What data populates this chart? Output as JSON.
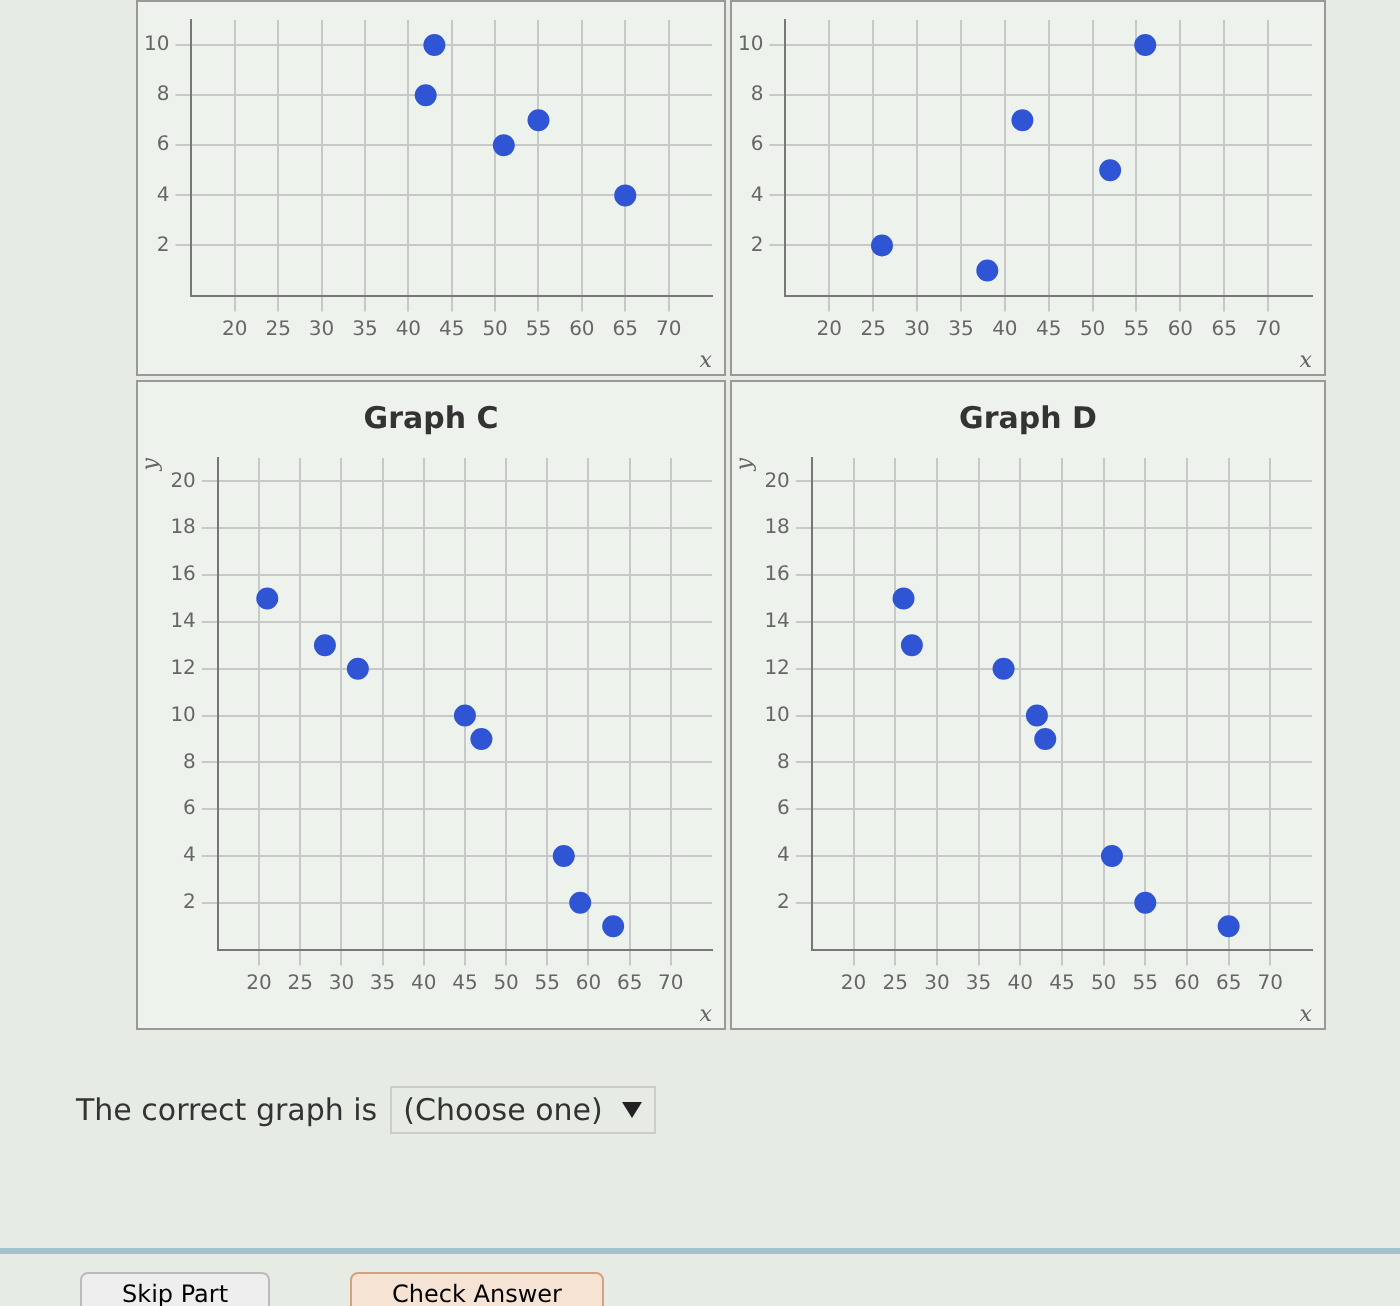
{
  "chart_data": [
    {
      "type": "scatter",
      "xlabel": "x",
      "x": [
        42,
        43,
        51,
        55,
        65
      ],
      "values": [
        8,
        10,
        6,
        7,
        4
      ],
      "color": "#2f55d4",
      "xlim": [
        15,
        75
      ],
      "xticks": [
        20,
        25,
        30,
        35,
        40,
        45,
        50,
        55,
        60,
        65,
        70
      ],
      "ylim": [
        0,
        11
      ],
      "yticks": [
        2,
        4,
        6,
        8,
        10
      ],
      "grid": true,
      "marker": "circle"
    },
    {
      "type": "scatter",
      "xlabel": "x",
      "x": [
        26,
        38,
        42,
        52,
        56
      ],
      "values": [
        2,
        1,
        7,
        5,
        10
      ],
      "color": "#2f55d4",
      "xlim": [
        15,
        75
      ],
      "xticks": [
        20,
        25,
        30,
        35,
        40,
        45,
        50,
        55,
        60,
        65,
        70
      ],
      "ylim": [
        0,
        11
      ],
      "yticks": [
        2,
        4,
        6,
        8,
        10
      ],
      "grid": true,
      "marker": "circle"
    },
    {
      "type": "scatter",
      "title": "Graph C",
      "xlabel": "x",
      "ylabel": "y",
      "x": [
        21,
        28,
        32,
        45,
        47,
        57,
        59,
        63
      ],
      "values": [
        15,
        13,
        12,
        10,
        9,
        4,
        2,
        1
      ],
      "color": "#2f55d4",
      "xlim": [
        15,
        75
      ],
      "xticks": [
        20,
        25,
        30,
        35,
        40,
        45,
        50,
        55,
        60,
        65,
        70
      ],
      "ylim": [
        0,
        21
      ],
      "yticks": [
        2,
        4,
        6,
        8,
        10,
        12,
        14,
        16,
        18,
        20
      ],
      "grid": true,
      "marker": "circle"
    },
    {
      "type": "scatter",
      "title": "Graph D",
      "xlabel": "x",
      "ylabel": "y",
      "x": [
        26,
        27,
        38,
        42,
        43,
        51,
        55,
        65
      ],
      "values": [
        15,
        13,
        12,
        10,
        9,
        4,
        2,
        1
      ],
      "color": "#2f55d4",
      "xlim": [
        15,
        75
      ],
      "xticks": [
        20,
        25,
        30,
        35,
        40,
        45,
        50,
        55,
        60,
        65,
        70
      ],
      "ylim": [
        0,
        21
      ],
      "yticks": [
        2,
        4,
        6,
        8,
        10,
        12,
        14,
        16,
        18,
        20
      ],
      "grid": true,
      "marker": "circle",
      "annotations": [
        "The correct graph is",
        "(Choose one)",
        "Skip Part",
        "Check Answer"
      ]
    }
  ]
}
